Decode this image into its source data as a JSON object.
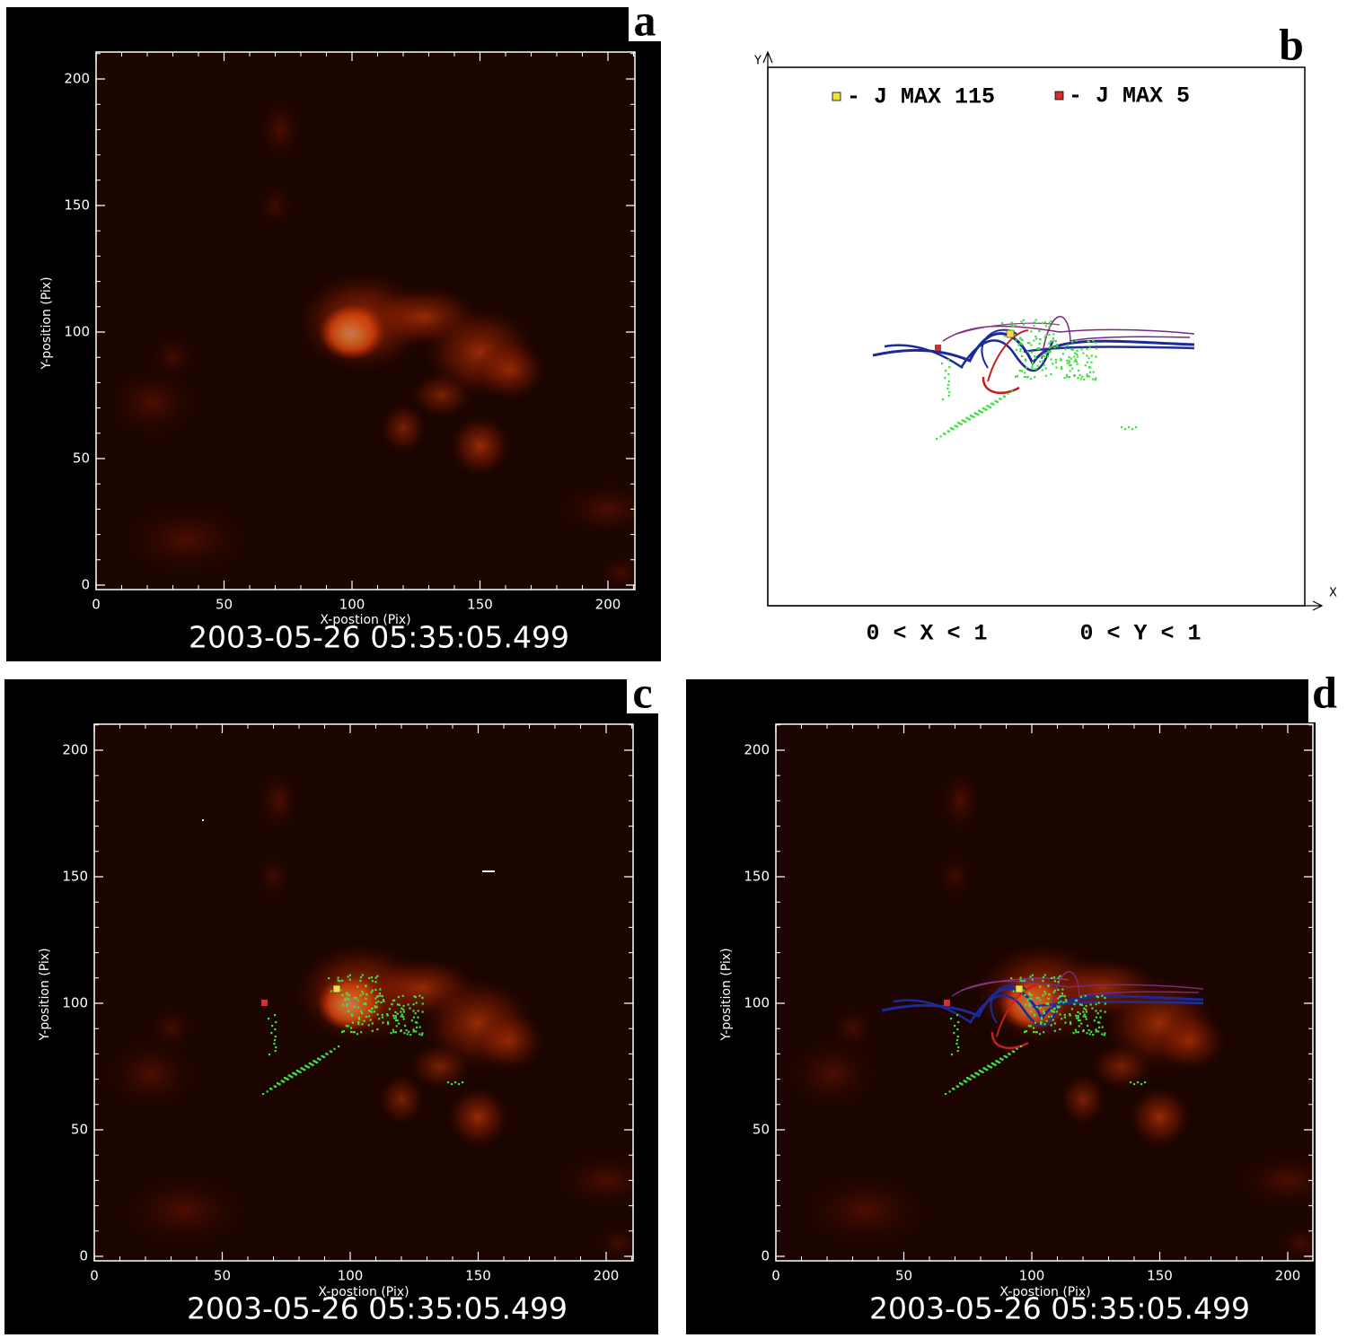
{
  "panels": [
    {
      "label": "a",
      "x_label": "X-postion (Pix)",
      "y_label": "Y-position (Pix)",
      "x_ticks": [
        0,
        50,
        100,
        150,
        200
      ],
      "y_ticks": [
        0,
        50,
        100,
        150,
        200
      ],
      "timestamp": "2003-05-26 05:35:05.499"
    },
    {
      "label": "b",
      "y_axis": "Y",
      "x_axis": "X",
      "legend": [
        "- J MAX 115",
        "- J MAX 5"
      ],
      "ranges": [
        "0 < X < 1",
        "0 < Y < 1"
      ]
    },
    {
      "label": "c",
      "x_label": "X-postion (Pix)",
      "y_label": "Y-position (Pix)",
      "x_ticks": [
        0,
        50,
        100,
        150,
        200
      ],
      "y_ticks": [
        0,
        50,
        100,
        150,
        200
      ],
      "timestamp": "2003-05-26 05:35:05.499"
    },
    {
      "label": "d",
      "x_label": "X-postion (Pix)",
      "y_label": "Y-position (Pix)",
      "x_ticks": [
        0,
        50,
        100,
        150,
        200
      ],
      "y_ticks": [
        0,
        50,
        100,
        150,
        200
      ],
      "timestamp": "2003-05-26 05:35:05.499"
    }
  ]
}
